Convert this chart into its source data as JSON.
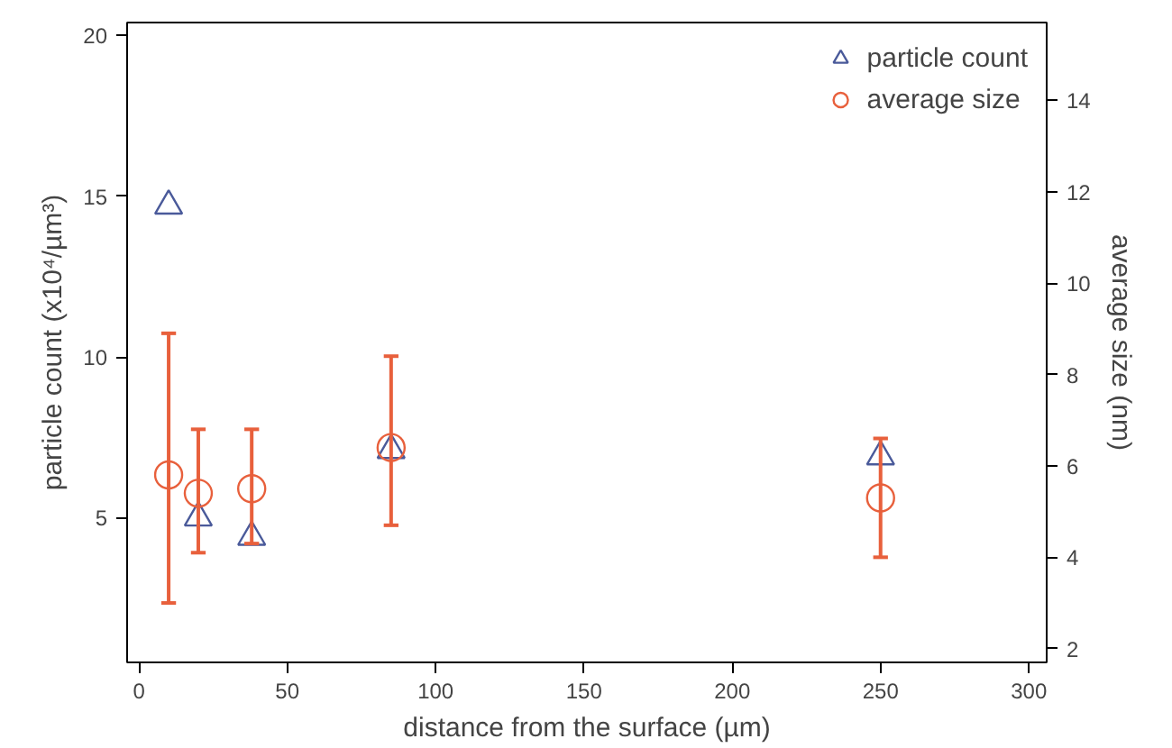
{
  "chart_data": {
    "type": "scatter",
    "xlabel": "distance from the surface (µm)",
    "ylabel": "particle count (x10⁴/µm³)",
    "y2label": "average size (nm)",
    "x": [
      10,
      20,
      38,
      85,
      250
    ],
    "xlim": [
      -4,
      306
    ],
    "xticks": [
      0,
      50,
      100,
      150,
      200,
      250,
      300
    ],
    "ylim": [
      0.5,
      20.4
    ],
    "yticks": [
      5,
      10,
      15,
      20
    ],
    "y2lim": [
      1.7,
      15.7
    ],
    "y2ticks": [
      2,
      4,
      6,
      8,
      10,
      12,
      14
    ],
    "series": [
      {
        "name": "particle count",
        "color": "#4a5a9a",
        "marker": "triangle",
        "values": [
          14.7,
          5.0,
          4.4,
          7.1,
          6.9
        ]
      },
      {
        "name": "average size",
        "color": "#e8603c",
        "marker": "circle",
        "axis": "y2",
        "values": [
          5.8,
          5.4,
          5.5,
          6.4,
          5.3
        ],
        "errors": [
          [
            3.0,
            8.9
          ],
          [
            4.1,
            6.8
          ],
          [
            4.3,
            6.8
          ],
          [
            4.7,
            8.4
          ],
          [
            4.0,
            6.6
          ]
        ]
      }
    ],
    "legend": "top right",
    "grid": false
  }
}
